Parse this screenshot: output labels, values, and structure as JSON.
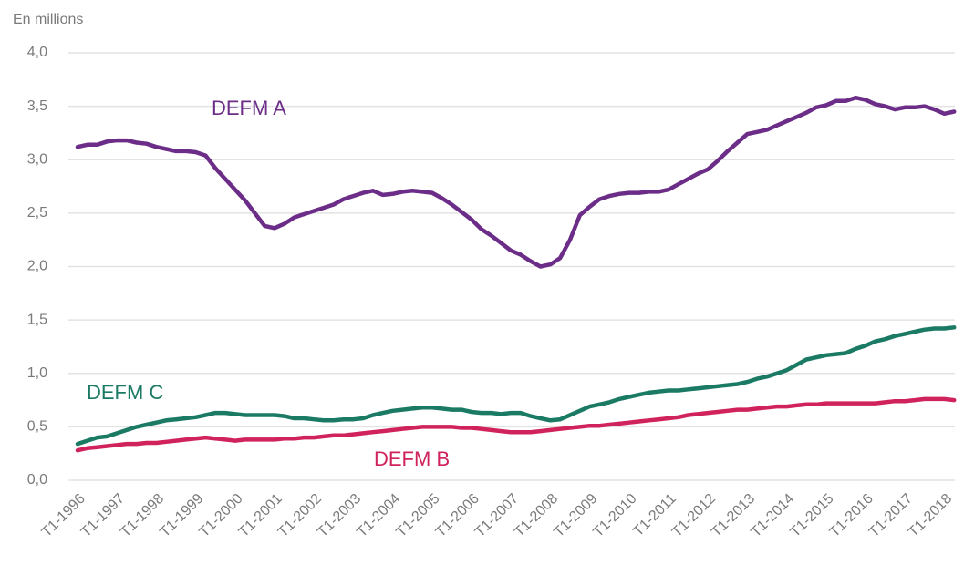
{
  "chart_data": {
    "type": "line",
    "y_label": "En millions",
    "categories": [
      "T1-1996",
      null,
      null,
      null,
      "T1-1997",
      null,
      null,
      null,
      "T1-1998",
      null,
      null,
      null,
      "T1-1999",
      null,
      null,
      null,
      "T1-2000",
      null,
      null,
      null,
      "T1-2001",
      null,
      null,
      null,
      "T1-2002",
      null,
      null,
      null,
      "T1-2003",
      null,
      null,
      null,
      "T1-2004",
      null,
      null,
      null,
      "T1-2005",
      null,
      null,
      null,
      "T1-2006",
      null,
      null,
      null,
      "T1-2007",
      null,
      null,
      null,
      "T1-2008",
      null,
      null,
      null,
      "T1-2009",
      null,
      null,
      null,
      "T1-2010",
      null,
      null,
      null,
      "T1-2011",
      null,
      null,
      null,
      "T1-2012",
      null,
      null,
      null,
      "T1-2013",
      null,
      null,
      null,
      "T1-2014",
      null,
      null,
      null,
      "T1-2015",
      null,
      null,
      null,
      "T1-2016",
      null,
      null,
      null,
      "T1-2017",
      null,
      null,
      null,
      "T1-2018",
      null
    ],
    "series": [
      {
        "name": "DEFM A",
        "color": "#6b2d87",
        "values": [
          3.12,
          3.14,
          3.14,
          3.17,
          3.18,
          3.18,
          3.16,
          3.15,
          3.12,
          3.1,
          3.08,
          3.08,
          3.07,
          3.04,
          2.92,
          2.82,
          2.72,
          2.62,
          2.5,
          2.38,
          2.36,
          2.4,
          2.46,
          2.49,
          2.52,
          2.55,
          2.58,
          2.63,
          2.66,
          2.69,
          2.71,
          2.67,
          2.68,
          2.7,
          2.71,
          2.7,
          2.69,
          2.64,
          2.58,
          2.51,
          2.44,
          2.35,
          2.29,
          2.22,
          2.15,
          2.11,
          2.05,
          2.0,
          2.02,
          2.08,
          2.25,
          2.48,
          2.56,
          2.63,
          2.66,
          2.68,
          2.69,
          2.69,
          2.7,
          2.7,
          2.72,
          2.77,
          2.82,
          2.87,
          2.91,
          2.99,
          3.08,
          3.16,
          3.24,
          3.26,
          3.28,
          3.32,
          3.36,
          3.4,
          3.44,
          3.49,
          3.51,
          3.55,
          3.55,
          3.58,
          3.56,
          3.52,
          3.5,
          3.47,
          3.49,
          3.49,
          3.5,
          3.47,
          3.43,
          3.45
        ]
      },
      {
        "name": "DEFM C",
        "color": "#1b7a64",
        "values": [
          0.34,
          0.37,
          0.4,
          0.41,
          0.44,
          0.47,
          0.5,
          0.52,
          0.54,
          0.56,
          0.57,
          0.58,
          0.59,
          0.61,
          0.63,
          0.63,
          0.62,
          0.61,
          0.61,
          0.61,
          0.61,
          0.6,
          0.58,
          0.58,
          0.57,
          0.56,
          0.56,
          0.57,
          0.57,
          0.58,
          0.61,
          0.63,
          0.65,
          0.66,
          0.67,
          0.68,
          0.68,
          0.67,
          0.66,
          0.66,
          0.64,
          0.63,
          0.63,
          0.62,
          0.63,
          0.63,
          0.6,
          0.58,
          0.56,
          0.57,
          0.61,
          0.65,
          0.69,
          0.71,
          0.73,
          0.76,
          0.78,
          0.8,
          0.82,
          0.83,
          0.84,
          0.84,
          0.85,
          0.86,
          0.87,
          0.88,
          0.89,
          0.9,
          0.92,
          0.95,
          0.97,
          1.0,
          1.03,
          1.08,
          1.13,
          1.15,
          1.17,
          1.18,
          1.19,
          1.23,
          1.26,
          1.3,
          1.32,
          1.35,
          1.37,
          1.39,
          1.41,
          1.42,
          1.42,
          1.43
        ]
      },
      {
        "name": "DEFM B",
        "color": "#d1235b",
        "values": [
          0.28,
          0.3,
          0.31,
          0.32,
          0.33,
          0.34,
          0.34,
          0.35,
          0.35,
          0.36,
          0.37,
          0.38,
          0.39,
          0.4,
          0.39,
          0.38,
          0.37,
          0.38,
          0.38,
          0.38,
          0.38,
          0.39,
          0.39,
          0.4,
          0.4,
          0.41,
          0.42,
          0.42,
          0.43,
          0.44,
          0.45,
          0.46,
          0.47,
          0.48,
          0.49,
          0.5,
          0.5,
          0.5,
          0.5,
          0.49,
          0.49,
          0.48,
          0.47,
          0.46,
          0.45,
          0.45,
          0.45,
          0.46,
          0.47,
          0.48,
          0.49,
          0.5,
          0.51,
          0.51,
          0.52,
          0.53,
          0.54,
          0.55,
          0.56,
          0.57,
          0.58,
          0.59,
          0.61,
          0.62,
          0.63,
          0.64,
          0.65,
          0.66,
          0.66,
          0.67,
          0.68,
          0.69,
          0.69,
          0.7,
          0.71,
          0.71,
          0.72,
          0.72,
          0.72,
          0.72,
          0.72,
          0.72,
          0.73,
          0.74,
          0.74,
          0.75,
          0.76,
          0.76,
          0.76,
          0.75
        ]
      }
    ],
    "ylim": [
      0,
      4
    ],
    "yticks": [
      {
        "value": 0,
        "label": "0,0"
      },
      {
        "value": 0.5,
        "label": "0,5"
      },
      {
        "value": 1,
        "label": "1,0"
      },
      {
        "value": 1.5,
        "label": "1,5"
      },
      {
        "value": 2,
        "label": "2,0"
      },
      {
        "value": 2.5,
        "label": "2,5"
      },
      {
        "value": 3,
        "label": "3,0"
      },
      {
        "value": 3.5,
        "label": "3,5"
      },
      {
        "value": 4,
        "label": "4,0"
      }
    ],
    "grid": true
  }
}
